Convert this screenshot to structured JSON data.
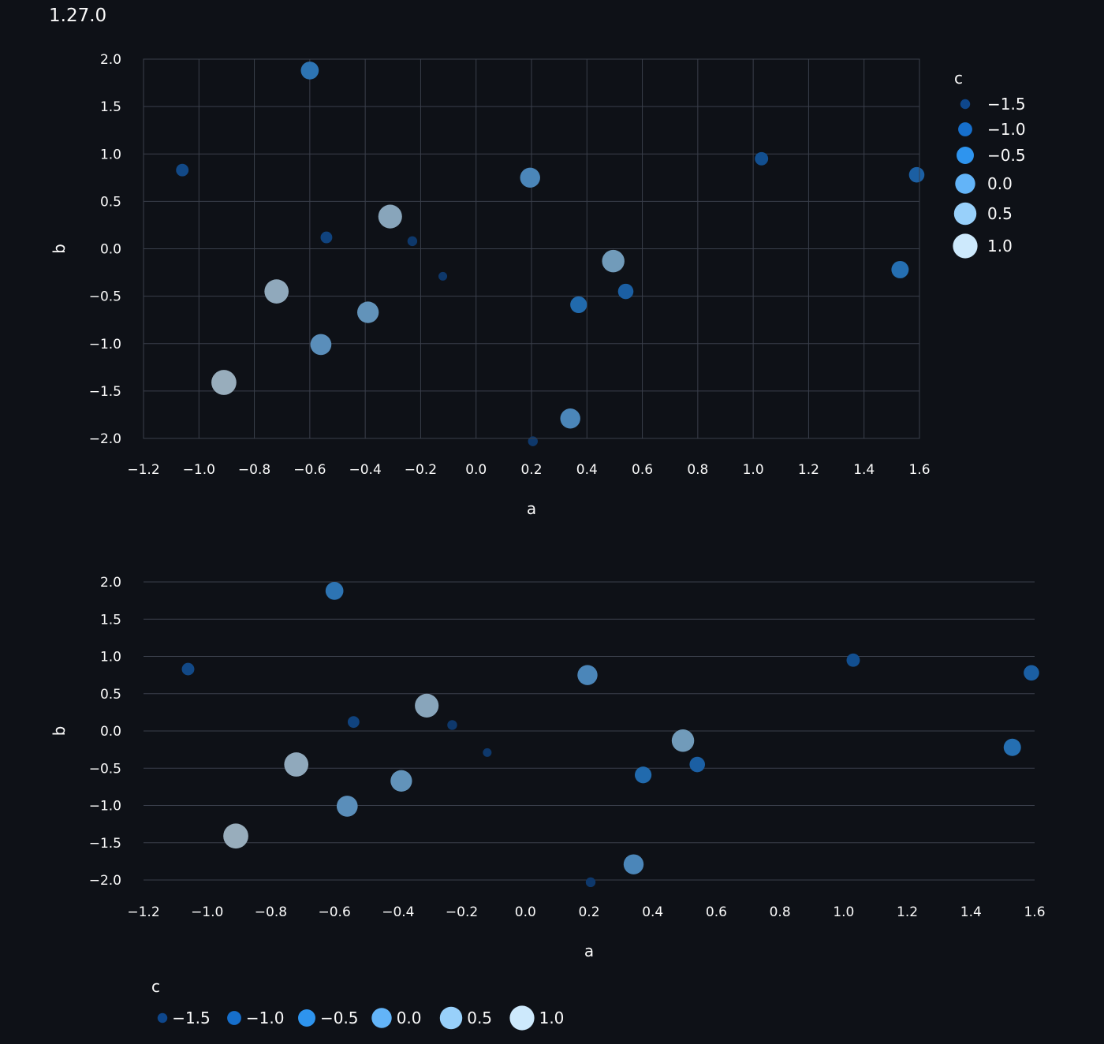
{
  "version": "1.27.0",
  "chart_data": [
    {
      "type": "scatter",
      "xlabel": "a",
      "ylabel": "b",
      "legend_title": "c",
      "legend_placement": "right",
      "grid": "both",
      "xlim": [
        -1.2,
        1.6
      ],
      "ylim": [
        -2.0,
        2.0
      ],
      "xticks": [
        "−1.2",
        "−1.0",
        "−0.8",
        "−0.6",
        "−0.4",
        "−0.2",
        "0.0",
        "0.2",
        "0.4",
        "0.6",
        "0.8",
        "1.0",
        "1.2",
        "1.4",
        "1.6"
      ],
      "yticks": [
        "2.0",
        "1.5",
        "1.0",
        "0.5",
        "0.0",
        "−0.5",
        "−1.0",
        "−1.5",
        "−2.0"
      ],
      "legend": [
        "−1.5",
        "−1.0",
        "−0.5",
        "0.0",
        "0.5",
        "1.0"
      ],
      "points": [
        {
          "a": -1.06,
          "b": 0.83,
          "c": -1.2
        },
        {
          "a": -0.91,
          "b": -1.41,
          "c": 1.1
        },
        {
          "a": -0.72,
          "b": -0.45,
          "c": 0.9
        },
        {
          "a": -0.6,
          "b": 1.88,
          "c": -0.4
        },
        {
          "a": -0.56,
          "b": -1.01,
          "c": 0.2
        },
        {
          "a": -0.54,
          "b": 0.12,
          "c": -1.3
        },
        {
          "a": -0.39,
          "b": -0.67,
          "c": 0.3
        },
        {
          "a": -0.31,
          "b": 0.34,
          "c": 0.8
        },
        {
          "a": -0.23,
          "b": 0.08,
          "c": -1.5
        },
        {
          "a": -0.12,
          "b": -0.29,
          "c": -1.6
        },
        {
          "a": 0.195,
          "b": 0.75,
          "c": 0.0
        },
        {
          "a": 0.205,
          "b": -2.03,
          "c": -1.5
        },
        {
          "a": 0.34,
          "b": -1.79,
          "c": 0.0
        },
        {
          "a": 0.37,
          "b": -0.59,
          "c": -0.6
        },
        {
          "a": 0.495,
          "b": -0.13,
          "c": 0.5
        },
        {
          "a": 0.54,
          "b": -0.45,
          "c": -0.8
        },
        {
          "a": 1.03,
          "b": 0.95,
          "c": -1.1
        },
        {
          "a": 1.53,
          "b": -0.22,
          "c": -0.5
        },
        {
          "a": 1.59,
          "b": 0.78,
          "c": -0.8
        }
      ]
    },
    {
      "type": "scatter",
      "xlabel": "a",
      "ylabel": "b",
      "legend_title": "c",
      "legend_placement": "bottom",
      "grid": "horizontal",
      "xlim": [
        -1.2,
        1.6
      ],
      "ylim": [
        -2.0,
        2.0
      ],
      "xticks": [
        "−1.2",
        "−1.0",
        "−0.8",
        "−0.6",
        "−0.4",
        "−0.2",
        "0.0",
        "0.2",
        "0.4",
        "0.6",
        "0.8",
        "1.0",
        "1.2",
        "1.4",
        "1.6"
      ],
      "yticks": [
        "2.0",
        "1.5",
        "1.0",
        "0.5",
        "0.0",
        "−0.5",
        "−1.0",
        "−1.5",
        "−2.0"
      ],
      "legend": [
        "−1.5",
        "−1.0",
        "−0.5",
        "0.0",
        "0.5",
        "1.0"
      ],
      "points": [
        {
          "a": -1.06,
          "b": 0.83,
          "c": -1.2
        },
        {
          "a": -0.91,
          "b": -1.41,
          "c": 1.1
        },
        {
          "a": -0.72,
          "b": -0.45,
          "c": 0.9
        },
        {
          "a": -0.6,
          "b": 1.88,
          "c": -0.4
        },
        {
          "a": -0.56,
          "b": -1.01,
          "c": 0.2
        },
        {
          "a": -0.54,
          "b": 0.12,
          "c": -1.3
        },
        {
          "a": -0.39,
          "b": -0.67,
          "c": 0.3
        },
        {
          "a": -0.31,
          "b": 0.34,
          "c": 0.8
        },
        {
          "a": -0.23,
          "b": 0.08,
          "c": -1.5
        },
        {
          "a": -0.12,
          "b": -0.29,
          "c": -1.6
        },
        {
          "a": 0.195,
          "b": 0.75,
          "c": 0.0
        },
        {
          "a": 0.205,
          "b": -2.03,
          "c": -1.5
        },
        {
          "a": 0.34,
          "b": -1.79,
          "c": 0.0
        },
        {
          "a": 0.37,
          "b": -0.59,
          "c": -0.6
        },
        {
          "a": 0.495,
          "b": -0.13,
          "c": 0.5
        },
        {
          "a": 0.54,
          "b": -0.45,
          "c": -0.8
        },
        {
          "a": 1.03,
          "b": 0.95,
          "c": -1.1
        },
        {
          "a": 1.53,
          "b": -0.22,
          "c": -0.5
        },
        {
          "a": 1.59,
          "b": 0.78,
          "c": -0.8
        }
      ]
    }
  ]
}
